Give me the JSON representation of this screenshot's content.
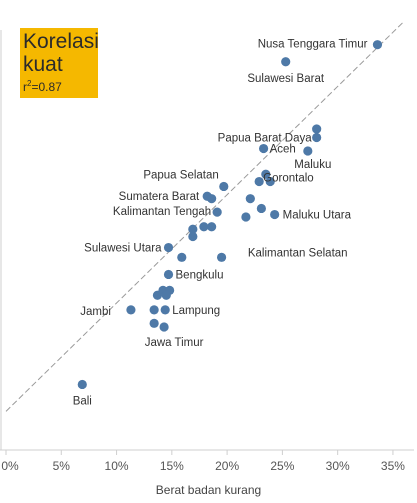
{
  "annotation": {
    "title": "Korelasi kuat",
    "stat_prefix": "r",
    "stat_suffix": "=0.87",
    "stat_exp": "2",
    "bg_color": "#f5b800"
  },
  "colors": {
    "point": "#4e79a7",
    "trend": "#9a9a9a",
    "axis": "#cfcfcf",
    "text": "#333333"
  },
  "chart_data": {
    "type": "scatter",
    "title": "",
    "xlabel": "Berat badan kurang",
    "ylabel": "",
    "xlim": [
      0,
      36
    ],
    "ylim": [
      0,
      36
    ],
    "x_ticks": [
      0,
      5,
      10,
      15,
      20,
      25,
      30,
      35
    ],
    "x_tick_labels": [
      "0%",
      "5%",
      "10%",
      "15%",
      "20%",
      "25%",
      "30%",
      "35%"
    ],
    "grid": false,
    "trendline": {
      "x": [
        0,
        36
      ],
      "y": [
        3.0,
        34.9
      ]
    },
    "points": [
      {
        "label": "Nusa Tenggara Timur",
        "x": 33.6,
        "y": 33.0
      },
      {
        "label": "Sulawesi Barat",
        "x": 25.3,
        "y": 31.6
      },
      {
        "label": "",
        "x": 28.1,
        "y": 26.1
      },
      {
        "label": "Papua Barat Daya",
        "x": 28.1,
        "y": 25.4
      },
      {
        "label": "Aceh",
        "x": 23.3,
        "y": 24.5
      },
      {
        "label": "Maluku",
        "x": 27.3,
        "y": 24.3
      },
      {
        "label": "",
        "x": 23.5,
        "y": 22.4
      },
      {
        "label": "Gorontalo",
        "x": 22.9,
        "y": 21.8
      },
      {
        "label": "",
        "x": 23.9,
        "y": 21.8
      },
      {
        "label": "Papua Selatan",
        "x": 19.7,
        "y": 21.4
      },
      {
        "label": "Sumatera Barat",
        "x": 18.2,
        "y": 20.6
      },
      {
        "label": "",
        "x": 18.6,
        "y": 20.4
      },
      {
        "label": "",
        "x": 22.1,
        "y": 20.4
      },
      {
        "label": "Kalimantan Tengah",
        "x": 19.1,
        "y": 19.3
      },
      {
        "label": "",
        "x": 23.1,
        "y": 19.6
      },
      {
        "label": "Maluku Utara",
        "x": 24.3,
        "y": 19.1
      },
      {
        "label": "",
        "x": 21.7,
        "y": 18.9
      },
      {
        "label": "",
        "x": 17.9,
        "y": 18.1
      },
      {
        "label": "",
        "x": 18.6,
        "y": 18.1
      },
      {
        "label": "",
        "x": 16.9,
        "y": 17.9
      },
      {
        "label": "Kalimantan Selatan",
        "x": 16.9,
        "y": 17.3
      },
      {
        "label": "Sulawesi Utara",
        "x": 14.7,
        "y": 16.4
      },
      {
        "label": "",
        "x": 19.5,
        "y": 15.6
      },
      {
        "label": "",
        "x": 15.9,
        "y": 15.6
      },
      {
        "label": "Bengkulu",
        "x": 14.7,
        "y": 14.2
      },
      {
        "label": "",
        "x": 14.2,
        "y": 12.9
      },
      {
        "label": "",
        "x": 14.8,
        "y": 12.9
      },
      {
        "label": "",
        "x": 13.7,
        "y": 12.5
      },
      {
        "label": "",
        "x": 14.5,
        "y": 12.5
      },
      {
        "label": "Jambi",
        "x": 11.3,
        "y": 11.3
      },
      {
        "label": "",
        "x": 13.4,
        "y": 11.3
      },
      {
        "label": "Lampung",
        "x": 14.4,
        "y": 11.3
      },
      {
        "label": "",
        "x": 13.4,
        "y": 10.2
      },
      {
        "label": "Jawa Timur",
        "x": 14.3,
        "y": 9.9
      },
      {
        "label": "Bali",
        "x": 6.9,
        "y": 5.2
      }
    ]
  }
}
